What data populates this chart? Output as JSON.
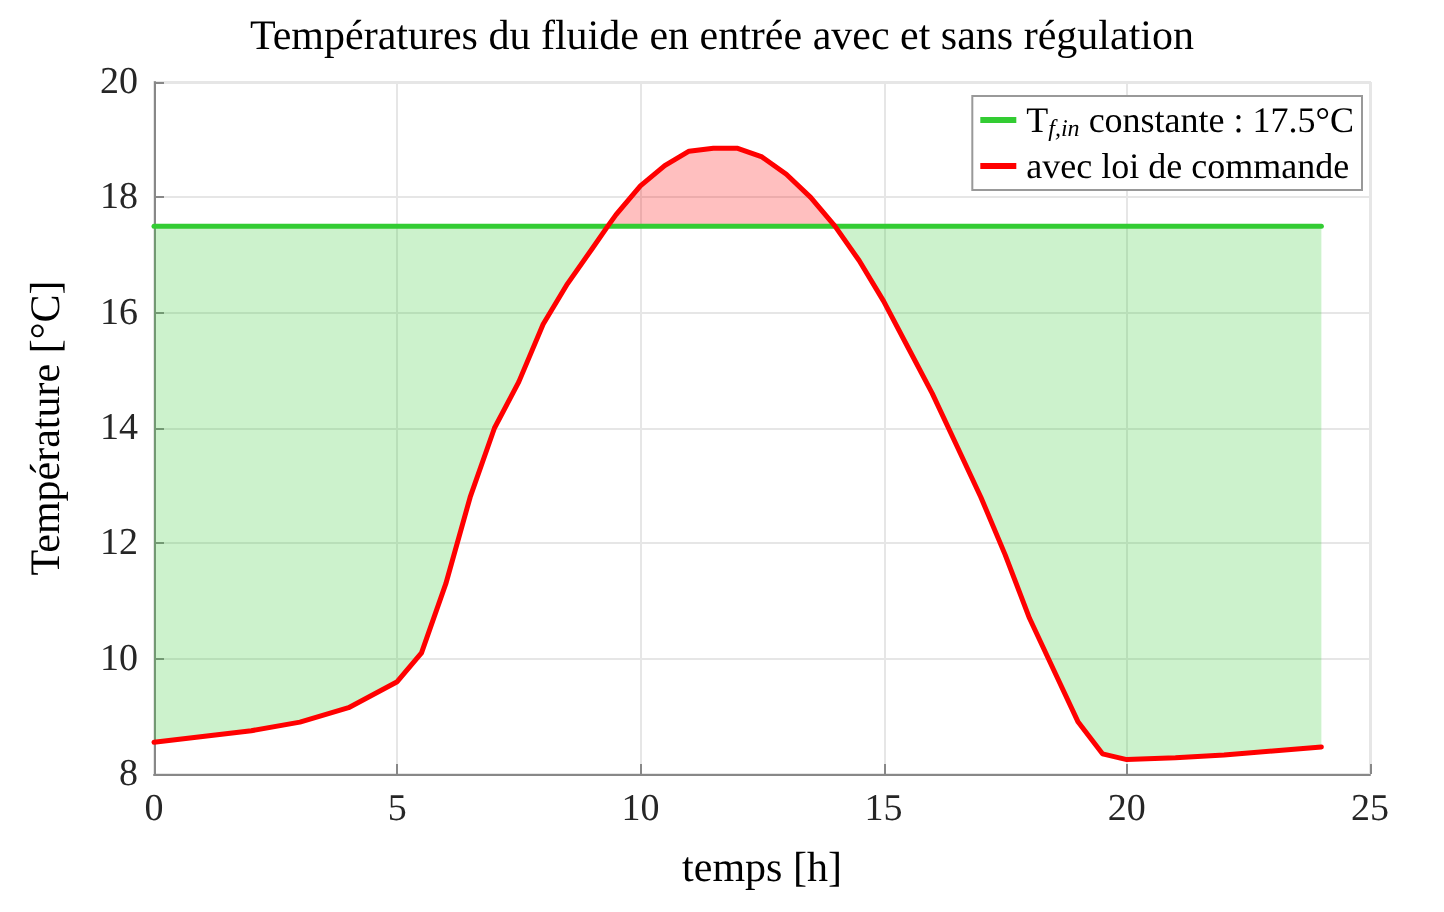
{
  "chart_data": {
    "type": "line",
    "title": "Températures du fluide en entrée avec et sans régulation",
    "xlabel": "temps [h]",
    "ylabel": "Température [°C]",
    "xlim": [
      0,
      25
    ],
    "xticks": [
      0,
      5,
      10,
      15,
      20,
      25
    ],
    "ylim": [
      8,
      20
    ],
    "yticks": [
      8,
      10,
      12,
      14,
      16,
      18,
      20
    ],
    "grid": true,
    "legend": "top right",
    "marker": "none",
    "line_style": "solid",
    "series": [
      {
        "name": "T$_{f,in}$ constante : 17.5°C",
        "color": "#33cc33",
        "x": [
          0,
          1,
          2,
          3,
          4,
          5,
          5.5,
          6,
          6.5,
          7,
          7.5,
          8,
          8.5,
          9,
          9.33,
          9.5,
          10,
          10.5,
          11,
          11.5,
          12,
          12.5,
          13,
          13.5,
          14,
          14.5,
          15,
          15.5,
          16,
          16.5,
          17,
          17.5,
          18,
          18.5,
          19,
          19.5,
          20,
          21,
          22,
          23,
          24
        ],
        "values": [
          17.5,
          17.5,
          17.5,
          17.5,
          17.5,
          17.5,
          17.5,
          17.5,
          17.5,
          17.5,
          17.5,
          17.5,
          17.5,
          17.5,
          17.5,
          17.5,
          17.5,
          17.5,
          17.5,
          17.5,
          17.5,
          17.5,
          17.5,
          17.5,
          17.5,
          17.5,
          17.5,
          17.5,
          17.5,
          17.5,
          17.5,
          17.5,
          17.5,
          17.5,
          17.5,
          17.5,
          17.5,
          17.5,
          17.5,
          17.5,
          17.5
        ],
        "upper": [
          17.5,
          17.5,
          17.5,
          17.5,
          17.5,
          17.5,
          17.5,
          17.5,
          17.5,
          17.5,
          17.5,
          17.5,
          17.5,
          17.5,
          17.5,
          17.5,
          17.5,
          17.5,
          17.5,
          17.5,
          17.5,
          17.5,
          17.5,
          17.5,
          17.5,
          17.5,
          17.5,
          17.5,
          17.5,
          17.5,
          17.5,
          17.5,
          17.5,
          17.5,
          17.5,
          17.5,
          17.5,
          17.5,
          17.5,
          17.5,
          17.5
        ],
        "lower": [
          8.55,
          8.65,
          8.75,
          8.9,
          9.15,
          9.6,
          10.1,
          11.3,
          12.8,
          14.0,
          14.8,
          15.8,
          16.5,
          17.1,
          17.5,
          17.5,
          17.5,
          17.5,
          17.5,
          17.5,
          17.5,
          17.5,
          17.5,
          17.5,
          17.5,
          16.9,
          16.2,
          15.4,
          14.6,
          13.7,
          12.8,
          11.8,
          10.7,
          9.8,
          8.9,
          8.35,
          8.25,
          8.28,
          8.33,
          8.4,
          8.47
        ]
      },
      {
        "name": "avec loi de commande",
        "color": "#ff0000",
        "x": [
          0,
          1,
          2,
          3,
          4,
          5,
          5.5,
          6,
          6.5,
          7,
          7.5,
          8,
          8.5,
          9,
          9.33,
          9.5,
          10,
          10.5,
          11,
          11.5,
          12,
          12.5,
          13,
          13.5,
          14,
          14.5,
          15,
          15.5,
          16,
          16.5,
          17,
          17.5,
          18,
          18.5,
          19,
          19.5,
          20,
          21,
          22,
          23,
          24
        ],
        "values": [
          8.55,
          8.65,
          8.75,
          8.9,
          9.15,
          9.6,
          10.1,
          11.3,
          12.8,
          14.0,
          14.8,
          15.8,
          16.5,
          17.1,
          17.5,
          17.7,
          18.2,
          18.55,
          18.8,
          18.85,
          18.85,
          18.7,
          18.4,
          18.0,
          17.5,
          16.9,
          16.2,
          15.4,
          14.6,
          13.7,
          12.8,
          11.8,
          10.7,
          9.8,
          8.9,
          8.35,
          8.25,
          8.28,
          8.33,
          8.4,
          8.47
        ],
        "upper": [
          8.55,
          8.65,
          8.75,
          8.9,
          9.15,
          9.6,
          10.1,
          11.3,
          12.8,
          14.0,
          14.8,
          15.8,
          16.5,
          17.1,
          17.5,
          17.7,
          18.2,
          18.55,
          18.8,
          18.85,
          18.85,
          18.7,
          18.4,
          18.0,
          17.5,
          16.9,
          16.2,
          15.4,
          14.6,
          13.7,
          12.8,
          11.8,
          10.7,
          9.8,
          8.9,
          8.35,
          8.25,
          8.28,
          8.33,
          8.4,
          8.47
        ],
        "lower": [
          8.55,
          8.65,
          8.75,
          8.9,
          9.15,
          9.6,
          10.1,
          11.3,
          12.8,
          14.0,
          14.8,
          15.8,
          16.5,
          17.1,
          17.5,
          17.5,
          17.5,
          17.5,
          17.5,
          17.5,
          17.5,
          17.5,
          17.5,
          17.5,
          17.5,
          16.9,
          16.2,
          15.4,
          14.6,
          13.7,
          12.8,
          11.8,
          10.7,
          9.8,
          8.9,
          8.35,
          8.25,
          8.28,
          8.33,
          8.4,
          8.47
        ]
      }
    ]
  }
}
